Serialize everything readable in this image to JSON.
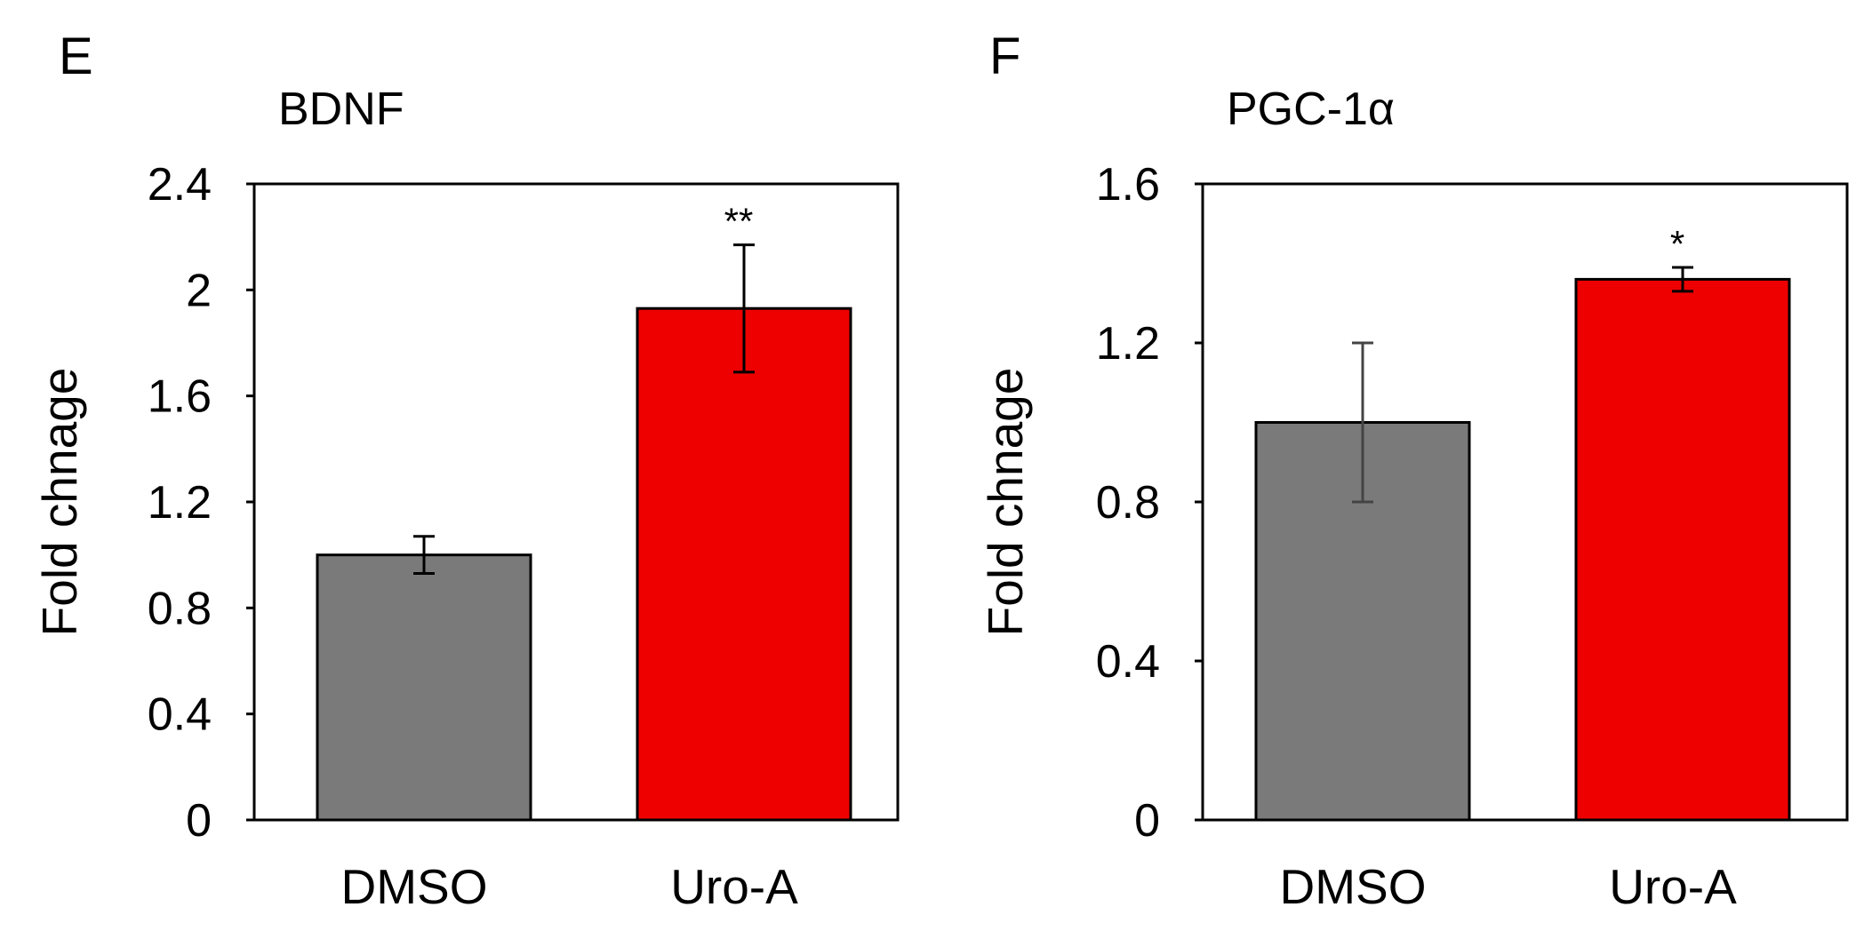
{
  "chart_data": [
    {
      "type": "bar",
      "panel": "E",
      "title": "BDNF",
      "ylabel": "Fold chnage",
      "xlabel": "",
      "categories": [
        "DMSO",
        "Uro-A"
      ],
      "values": [
        1.0,
        1.93
      ],
      "errors": [
        0.07,
        0.24
      ],
      "significance": [
        "",
        "**"
      ],
      "colors": [
        "#7a7a7a",
        "#ee0000"
      ],
      "ylim": [
        0,
        2.4
      ],
      "yticks": [
        0,
        0.4,
        0.8,
        1.2,
        1.6,
        2,
        2.4
      ],
      "ytick_labels": [
        "0",
        "0.4",
        "0.8",
        "1.2",
        "1.6",
        "2",
        "2.4"
      ]
    },
    {
      "type": "bar",
      "panel": "F",
      "title": "PGC-1α",
      "ylabel": "Fold chnage",
      "xlabel": "",
      "categories": [
        "DMSO",
        "Uro-A"
      ],
      "values": [
        1.0,
        1.36
      ],
      "errors": [
        0.2,
        0.03
      ],
      "significance": [
        "",
        "*"
      ],
      "colors": [
        "#7a7a7a",
        "#ee0000"
      ],
      "ylim": [
        0,
        1.6
      ],
      "yticks": [
        0,
        0.4,
        0.8,
        1.2,
        1.6
      ],
      "ytick_labels": [
        "0",
        "0.4",
        "0.8",
        "1.2",
        "1.6"
      ]
    }
  ]
}
